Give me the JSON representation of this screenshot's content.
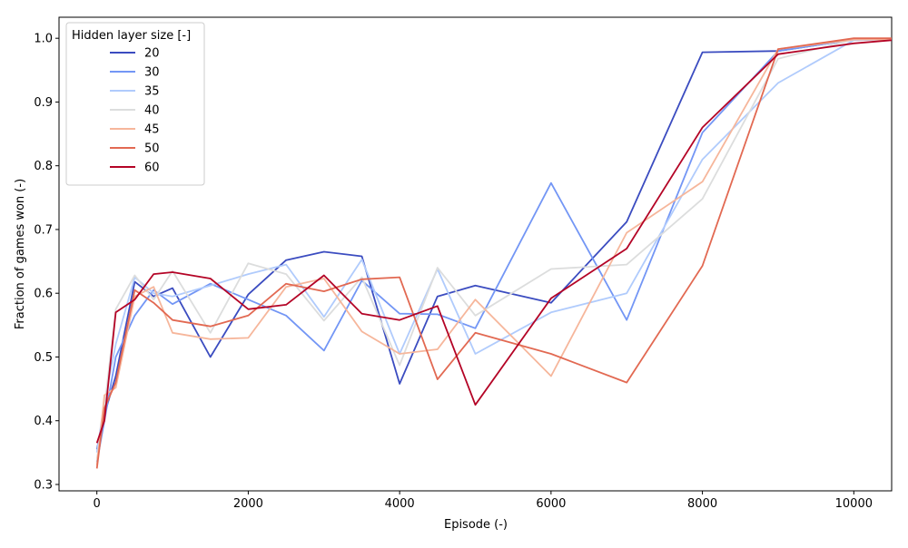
{
  "chart_data": {
    "type": "line",
    "title": "",
    "xlabel": "Episode (-)",
    "ylabel": "Fraction of games won (-)",
    "xlim": [
      -500,
      10500
    ],
    "ylim": [
      0.29,
      1.033
    ],
    "xticks": [
      0,
      2000,
      4000,
      6000,
      8000,
      10000
    ],
    "yticks": [
      0.3,
      0.4,
      0.5,
      0.6,
      0.7,
      0.8,
      0.9,
      1.0
    ],
    "ytick_labels": [
      "0.3",
      "0.4",
      "0.5",
      "0.6",
      "0.7",
      "0.8",
      "0.9",
      "1.0"
    ],
    "grid": false,
    "legend": {
      "title": "Hidden layer size [-]",
      "placement": "upper-left"
    },
    "series": [
      {
        "name": "20",
        "color": "#3b4cc0",
        "x": [
          0,
          100,
          250,
          500,
          750,
          1000,
          1500,
          2000,
          2500,
          3000,
          3500,
          4000,
          4500,
          5000,
          6000,
          7000,
          8000,
          9000,
          10000,
          10500
        ],
        "y": [
          0.355,
          0.41,
          0.47,
          0.618,
          0.595,
          0.608,
          0.5,
          0.598,
          0.652,
          0.665,
          0.658,
          0.458,
          0.595,
          0.612,
          0.585,
          0.712,
          0.978,
          0.98,
          0.998,
          0.998
        ]
      },
      {
        "name": "30",
        "color": "#7396f5",
        "x": [
          0,
          100,
          250,
          500,
          750,
          1000,
          1500,
          2000,
          2500,
          3000,
          3500,
          4000,
          4500,
          5000,
          6000,
          7000,
          8000,
          9000,
          10000,
          10500
        ],
        "y": [
          0.335,
          0.4,
          0.5,
          0.565,
          0.605,
          0.583,
          0.615,
          0.59,
          0.565,
          0.51,
          0.62,
          0.568,
          0.567,
          0.545,
          0.773,
          0.558,
          0.852,
          0.98,
          0.998,
          0.998
        ]
      },
      {
        "name": "35",
        "color": "#b0cbfc",
        "x": [
          0,
          100,
          250,
          500,
          750,
          1000,
          1500,
          2000,
          2500,
          3000,
          3500,
          4000,
          4500,
          5000,
          6000,
          7000,
          8000,
          9000,
          10000,
          10500
        ],
        "y": [
          0.35,
          0.43,
          0.52,
          0.625,
          0.6,
          0.595,
          0.612,
          0.63,
          0.645,
          0.563,
          0.653,
          0.505,
          0.638,
          0.505,
          0.57,
          0.6,
          0.81,
          0.93,
          0.997,
          0.998
        ]
      },
      {
        "name": "40",
        "color": "#dcdddd",
        "x": [
          0,
          100,
          250,
          500,
          750,
          1000,
          1500,
          2000,
          2500,
          3000,
          3500,
          4000,
          4500,
          5000,
          6000,
          7000,
          8000,
          9000,
          10000,
          10500
        ],
        "y": [
          0.34,
          0.42,
          0.575,
          0.628,
          0.59,
          0.635,
          0.538,
          0.647,
          0.63,
          0.557,
          0.625,
          0.487,
          0.64,
          0.565,
          0.638,
          0.645,
          0.748,
          0.968,
          0.998,
          0.998
        ]
      },
      {
        "name": "45",
        "color": "#f6b69b",
        "x": [
          0,
          100,
          250,
          500,
          750,
          1000,
          1500,
          2000,
          2500,
          3000,
          3500,
          4000,
          4500,
          5000,
          6000,
          7000,
          8000,
          9000,
          10000,
          10500
        ],
        "y": [
          0.33,
          0.44,
          0.452,
          0.595,
          0.61,
          0.538,
          0.528,
          0.53,
          0.61,
          0.623,
          0.54,
          0.505,
          0.512,
          0.59,
          0.47,
          0.695,
          0.775,
          0.983,
          0.998,
          0.998
        ]
      },
      {
        "name": "50",
        "color": "#e26952",
        "x": [
          0,
          100,
          250,
          500,
          750,
          1000,
          1500,
          2000,
          2500,
          3000,
          3500,
          4000,
          4500,
          5000,
          6000,
          7000,
          8000,
          9000,
          10000,
          10500
        ],
        "y": [
          0.325,
          0.42,
          0.46,
          0.605,
          0.585,
          0.558,
          0.548,
          0.565,
          0.615,
          0.603,
          0.622,
          0.625,
          0.465,
          0.538,
          0.505,
          0.46,
          0.643,
          0.983,
          1.0,
          1.0
        ]
      },
      {
        "name": "60",
        "color": "#b40426",
        "x": [
          0,
          100,
          250,
          500,
          750,
          1000,
          1500,
          2000,
          2500,
          3000,
          3500,
          4000,
          4500,
          5000,
          6000,
          7000,
          8000,
          9000,
          10000,
          10500
        ],
        "y": [
          0.365,
          0.4,
          0.57,
          0.59,
          0.63,
          0.633,
          0.623,
          0.575,
          0.582,
          0.628,
          0.568,
          0.558,
          0.58,
          0.425,
          0.592,
          0.67,
          0.86,
          0.975,
          0.992,
          0.997
        ]
      }
    ]
  }
}
